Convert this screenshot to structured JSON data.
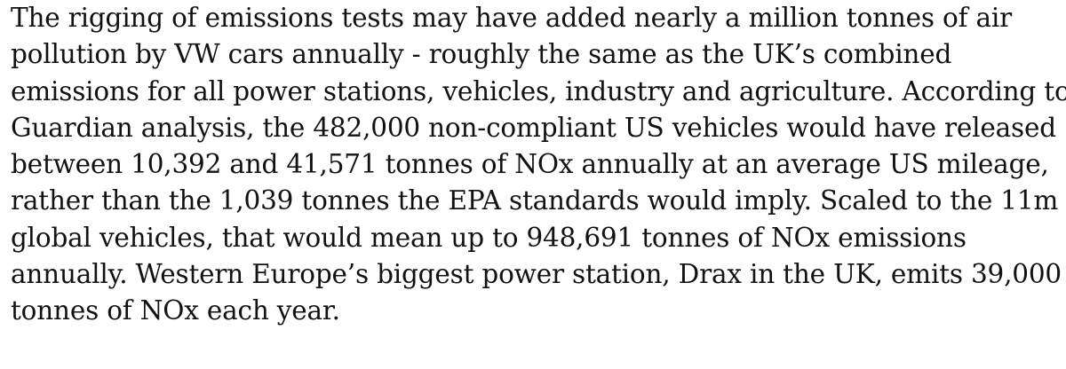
{
  "article": {
    "paragraph_lines": [
      "The rigging of emissions tests may have added nearly a million tonnes of air",
      "pollution by VW cars annually - roughly the same as the UK’s combined",
      "emissions for all power stations, vehicles, industry and agriculture. According to",
      "Guardian analysis, the 482,000 non-compliant US vehicles would have released",
      "between 10,392 and 41,571 tonnes of NOx annually at an average US mileage,",
      "rather than the 1,039 tonnes the EPA standards would imply. Scaled to the 11m",
      "global vehicles, that would mean up to 948,691 tonnes of NOx emissions",
      "annually. Western Europe’s biggest power station, Drax in the UK, emits 39,000",
      "tonnes of NOx each year."
    ]
  },
  "colors": {
    "text": "#121212",
    "background": "#ffffff"
  }
}
